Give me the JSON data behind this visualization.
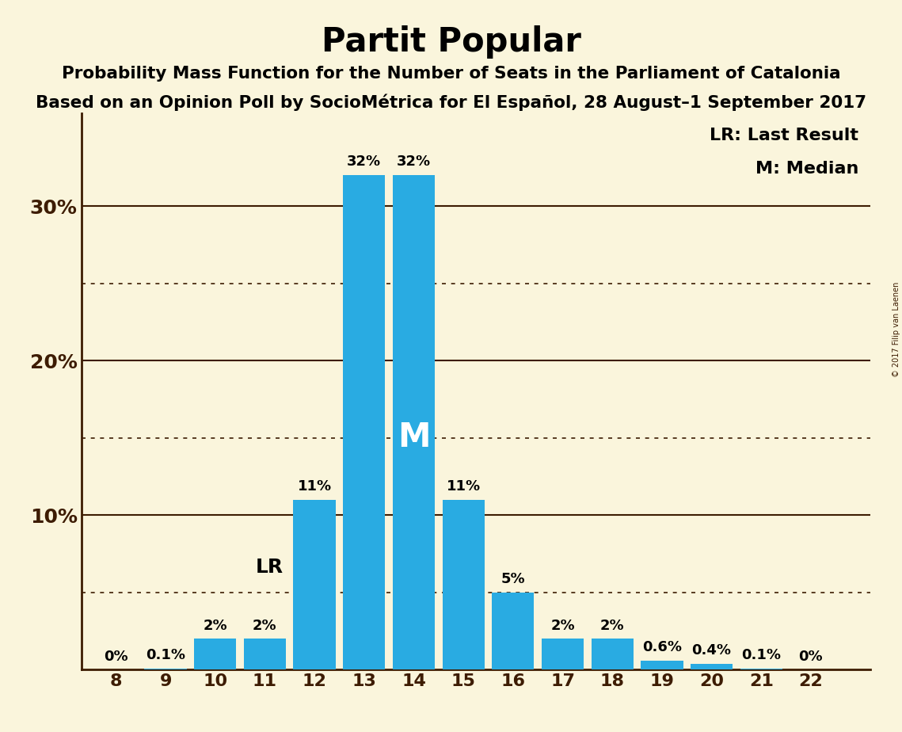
{
  "title": "Partit Popular",
  "subtitle1": "Probability Mass Function for the Number of Seats in the Parliament of Catalonia",
  "subtitle2": "Based on an Opinion Poll by SocioMétrica for El Español, 28 August–1 September 2017",
  "copyright": "© 2017 Filip van Laenen",
  "seats": [
    8,
    9,
    10,
    11,
    12,
    13,
    14,
    15,
    16,
    17,
    18,
    19,
    20,
    21,
    22
  ],
  "probabilities": [
    0.0,
    0.1,
    2.0,
    2.0,
    11.0,
    32.0,
    32.0,
    11.0,
    5.0,
    2.0,
    2.0,
    0.6,
    0.4,
    0.1,
    0.0
  ],
  "labels": [
    "0%",
    "0.1%",
    "2%",
    "2%",
    "11%",
    "32%",
    "32%",
    "11%",
    "5%",
    "2%",
    "2%",
    "0.6%",
    "0.4%",
    "0.1%",
    "0%"
  ],
  "bar_color": "#29ABE2",
  "background_color": "#FAF5DC",
  "last_result_seat": 11,
  "median_seat": 14,
  "ylim": [
    0,
    36
  ],
  "solid_grid": [
    10,
    20,
    30
  ],
  "dotted_grid": [
    5,
    15,
    25
  ],
  "ytick_positions": [
    10,
    20,
    30
  ],
  "ytick_labels": [
    "10%",
    "20%",
    "30%"
  ],
  "legend_lr": "LR: Last Result",
  "legend_m": "M: Median"
}
